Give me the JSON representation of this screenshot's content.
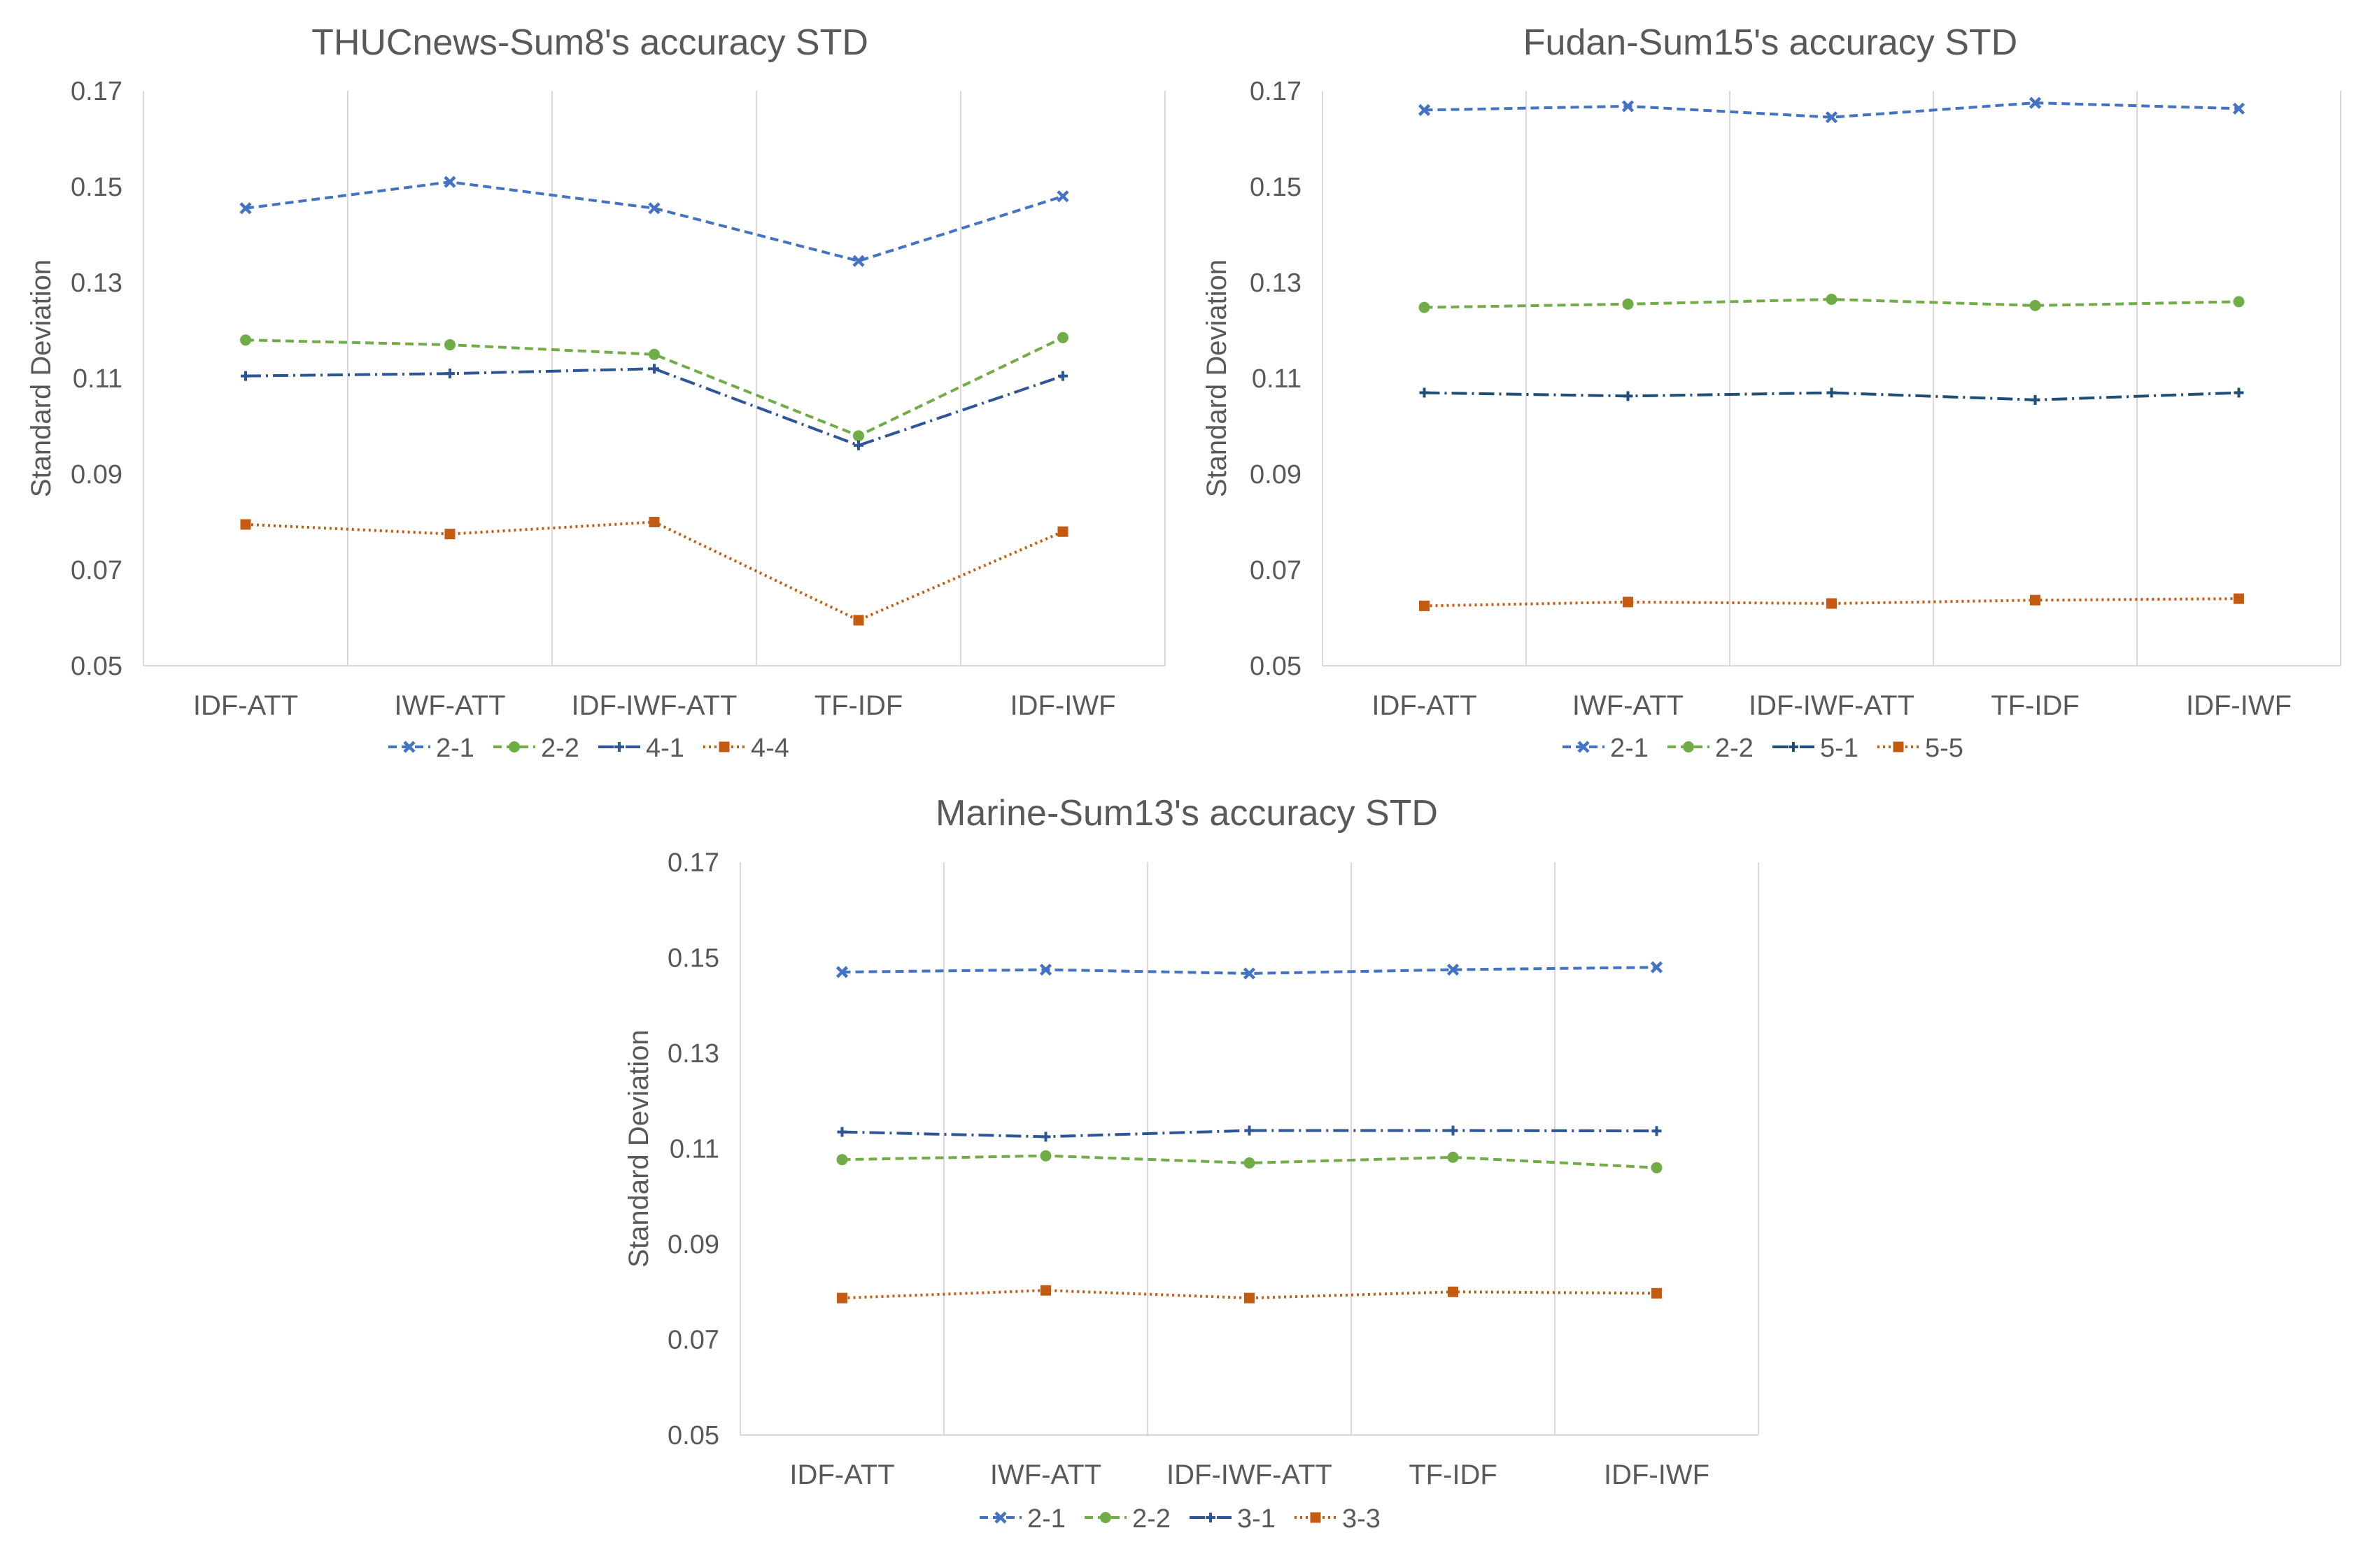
{
  "chart_data": [
    {
      "type": "line",
      "title": "THUCnews-Sum8's accuracy STD",
      "xlabel": "",
      "ylabel": "Standard Deviation",
      "ylim": [
        0.05,
        0.17
      ],
      "yticks": [
        "0.05",
        "0.07",
        "0.09",
        "0.11",
        "0.13",
        "0.15",
        "0.17"
      ],
      "categories": [
        "IDF-ATT",
        "IWF-ATT",
        "IDF-IWF-ATT",
        "TF-IDF",
        "IDF-IWF"
      ],
      "grid": "vertical",
      "legend": "bottom",
      "series": [
        {
          "name": "2-1",
          "color": "#4472C4",
          "dash": "dashed",
          "marker": "x",
          "values": [
            0.1455,
            0.151,
            0.1455,
            0.1345,
            0.148
          ]
        },
        {
          "name": "2-2",
          "color": "#70AD47",
          "dash": "dashed",
          "marker": "circle",
          "values": [
            0.118,
            0.117,
            0.115,
            0.098,
            0.1185
          ]
        },
        {
          "name": "4-1",
          "color": "#2E5597",
          "dash": "dashdot",
          "marker": "plus",
          "values": [
            0.1105,
            0.111,
            0.112,
            0.096,
            0.1105
          ]
        },
        {
          "name": "4-4",
          "color": "#C55A11",
          "dash": "dotted",
          "marker": "square",
          "values": [
            0.0795,
            0.0775,
            0.08,
            0.0595,
            0.078
          ]
        }
      ]
    },
    {
      "type": "line",
      "title": "Fudan-Sum15's accuracy STD",
      "xlabel": "",
      "ylabel": "Standard Deviation",
      "ylim": [
        0.05,
        0.17
      ],
      "yticks": [
        "0.05",
        "0.07",
        "0.09",
        "0.11",
        "0.13",
        "0.15",
        "0.17"
      ],
      "categories": [
        "IDF-ATT",
        "IWF-ATT",
        "IDF-IWF-ATT",
        "TF-IDF",
        "IDF-IWF"
      ],
      "grid": "vertical",
      "legend": "bottom",
      "series": [
        {
          "name": "2-1",
          "color": "#4472C4",
          "dash": "dashed",
          "marker": "x",
          "values": [
            0.166,
            0.1668,
            0.1645,
            0.1675,
            0.1663
          ]
        },
        {
          "name": "2-2",
          "color": "#70AD47",
          "dash": "dashed",
          "marker": "circle",
          "values": [
            0.1248,
            0.1255,
            0.1265,
            0.1252,
            0.126
          ]
        },
        {
          "name": "5-1",
          "color": "#1F4E79",
          "dash": "dashdot",
          "marker": "plus",
          "values": [
            0.107,
            0.1063,
            0.107,
            0.1055,
            0.107
          ]
        },
        {
          "name": "5-5",
          "color": "#C55A11",
          "dash": "dotted",
          "marker": "square",
          "values": [
            0.0625,
            0.0633,
            0.063,
            0.0637,
            0.064
          ]
        }
      ]
    },
    {
      "type": "line",
      "title": "Marine-Sum13's accuracy STD",
      "xlabel": "",
      "ylabel": "Standard Deviation",
      "ylim": [
        0.05,
        0.17
      ],
      "yticks": [
        "0.05",
        "0.07",
        "0.09",
        "0.11",
        "0.13",
        "0.15",
        "0.17"
      ],
      "categories": [
        "IDF-ATT",
        "IWF-ATT",
        "IDF-IWF-ATT",
        "TF-IDF",
        "IDF-IWF"
      ],
      "grid": "vertical",
      "legend": "bottom",
      "series": [
        {
          "name": "2-1",
          "color": "#4472C4",
          "dash": "dashed",
          "marker": "x",
          "values": [
            0.147,
            0.1475,
            0.1467,
            0.1475,
            0.148
          ]
        },
        {
          "name": "2-2",
          "color": "#70AD47",
          "dash": "dashed",
          "marker": "circle",
          "values": [
            0.1077,
            0.1085,
            0.107,
            0.1082,
            0.106
          ]
        },
        {
          "name": "3-1",
          "color": "#2E5597",
          "dash": "dashdot",
          "marker": "plus",
          "values": [
            0.1135,
            0.1125,
            0.1138,
            0.1138,
            0.1137
          ]
        },
        {
          "name": "3-3",
          "color": "#C55A11",
          "dash": "dotted",
          "marker": "square",
          "values": [
            0.0787,
            0.0803,
            0.0787,
            0.08,
            0.0797
          ]
        }
      ]
    }
  ]
}
